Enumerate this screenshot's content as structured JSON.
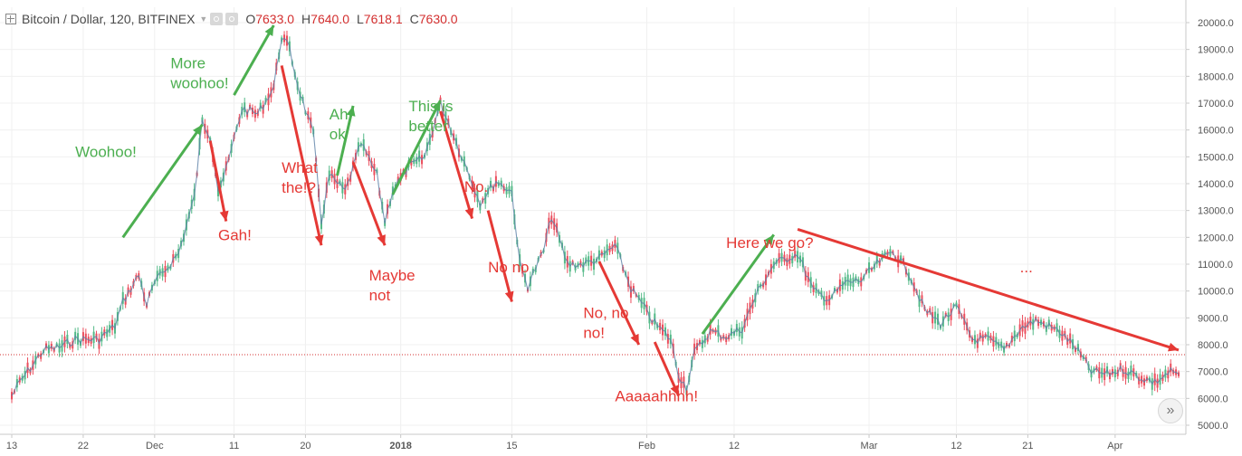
{
  "header": {
    "symbol": "Bitcoin / Dollar, 120, BITFINEX",
    "open_label": "O",
    "open": "7633.0",
    "high_label": "H",
    "high": "7640.0",
    "low_label": "L",
    "low": "7618.1",
    "close_label": "C",
    "close": "7630.0"
  },
  "chart_data": {
    "type": "candlestick",
    "y_axis": {
      "range": [
        4800,
        20500
      ],
      "ticks": [
        "5000.0",
        "6000.0",
        "7000.0",
        "8000.0",
        "9000.0",
        "10000.0",
        "11000.0",
        "12000.0",
        "13000.0",
        "14000.0",
        "15000.0",
        "16000.0",
        "17000.0",
        "18000.0",
        "19000.0",
        "20000.0"
      ],
      "position": "right"
    },
    "x_axis": {
      "range": [
        "2017-11-13",
        "2018-04-09"
      ],
      "ticks": [
        {
          "date": "2017-11-13",
          "label": "13"
        },
        {
          "date": "2017-11-22",
          "label": "22"
        },
        {
          "date": "2017-12-01",
          "label": "Dec"
        },
        {
          "date": "2017-12-11",
          "label": "11"
        },
        {
          "date": "2017-12-20",
          "label": "20"
        },
        {
          "date": "2018-01-01",
          "label": "2018"
        },
        {
          "date": "2018-01-15",
          "label": "15"
        },
        {
          "date": "2018-02-01",
          "label": "Feb"
        },
        {
          "date": "2018-02-12",
          "label": "12"
        },
        {
          "date": "2018-03-01",
          "label": "Mar"
        },
        {
          "date": "2018-03-12",
          "label": "12"
        },
        {
          "date": "2018-03-21",
          "label": "21"
        },
        {
          "date": "2018-04-01",
          "label": "Apr"
        }
      ]
    },
    "price_series": [
      {
        "date": "2017-11-13",
        "value": 6100
      },
      {
        "date": "2017-11-14",
        "value": 6600
      },
      {
        "date": "2017-11-16",
        "value": 7400
      },
      {
        "date": "2017-11-17",
        "value": 7800
      },
      {
        "date": "2017-11-19",
        "value": 7900
      },
      {
        "date": "2017-11-21",
        "value": 8200
      },
      {
        "date": "2017-11-24",
        "value": 8200
      },
      {
        "date": "2017-11-26",
        "value": 8700
      },
      {
        "date": "2017-11-27",
        "value": 9600
      },
      {
        "date": "2017-11-29",
        "value": 10600
      },
      {
        "date": "2017-11-30",
        "value": 9500
      },
      {
        "date": "2017-12-01",
        "value": 10300
      },
      {
        "date": "2017-12-04",
        "value": 11400
      },
      {
        "date": "2017-12-06",
        "value": 13500
      },
      {
        "date": "2017-12-07",
        "value": 16300
      },
      {
        "date": "2017-12-08",
        "value": 15800
      },
      {
        "date": "2017-12-09",
        "value": 13800
      },
      {
        "date": "2017-12-10",
        "value": 14500
      },
      {
        "date": "2017-12-12",
        "value": 16800
      },
      {
        "date": "2017-12-14",
        "value": 16600
      },
      {
        "date": "2017-12-16",
        "value": 17600
      },
      {
        "date": "2017-12-17",
        "value": 19500
      },
      {
        "date": "2017-12-18",
        "value": 19000
      },
      {
        "date": "2017-12-19",
        "value": 17700
      },
      {
        "date": "2017-12-21",
        "value": 15800
      },
      {
        "date": "2017-12-22",
        "value": 12600
      },
      {
        "date": "2017-12-23",
        "value": 14300
      },
      {
        "date": "2017-12-25",
        "value": 13700
      },
      {
        "date": "2017-12-27",
        "value": 15500
      },
      {
        "date": "2017-12-29",
        "value": 14300
      },
      {
        "date": "2017-12-30",
        "value": 12600
      },
      {
        "date": "2017-12-31",
        "value": 13800
      },
      {
        "date": "2018-01-02",
        "value": 14600
      },
      {
        "date": "2018-01-04",
        "value": 15000
      },
      {
        "date": "2018-01-06",
        "value": 17000
      },
      {
        "date": "2018-01-07",
        "value": 16300
      },
      {
        "date": "2018-01-09",
        "value": 14800
      },
      {
        "date": "2018-01-11",
        "value": 13300
      },
      {
        "date": "2018-01-13",
        "value": 14100
      },
      {
        "date": "2018-01-15",
        "value": 13700
      },
      {
        "date": "2018-01-16",
        "value": 11000
      },
      {
        "date": "2018-01-17",
        "value": 10200
      },
      {
        "date": "2018-01-19",
        "value": 11500
      },
      {
        "date": "2018-01-20",
        "value": 12800
      },
      {
        "date": "2018-01-22",
        "value": 11000
      },
      {
        "date": "2018-01-24",
        "value": 11000
      },
      {
        "date": "2018-01-26",
        "value": 11200
      },
      {
        "date": "2018-01-28",
        "value": 11700
      },
      {
        "date": "2018-01-30",
        "value": 10100
      },
      {
        "date": "2018-02-02",
        "value": 8800
      },
      {
        "date": "2018-02-04",
        "value": 8200
      },
      {
        "date": "2018-02-05",
        "value": 6900
      },
      {
        "date": "2018-02-06",
        "value": 6400
      },
      {
        "date": "2018-02-07",
        "value": 7700
      },
      {
        "date": "2018-02-09",
        "value": 8500
      },
      {
        "date": "2018-02-11",
        "value": 8300
      },
      {
        "date": "2018-02-13",
        "value": 8600
      },
      {
        "date": "2018-02-15",
        "value": 10000
      },
      {
        "date": "2018-02-17",
        "value": 11000
      },
      {
        "date": "2018-02-20",
        "value": 11400
      },
      {
        "date": "2018-02-22",
        "value": 10000
      },
      {
        "date": "2018-02-24",
        "value": 9700
      },
      {
        "date": "2018-02-26",
        "value": 10300
      },
      {
        "date": "2018-02-28",
        "value": 10400
      },
      {
        "date": "2018-03-02",
        "value": 11000
      },
      {
        "date": "2018-03-04",
        "value": 11500
      },
      {
        "date": "2018-03-06",
        "value": 10700
      },
      {
        "date": "2018-03-08",
        "value": 9300
      },
      {
        "date": "2018-03-10",
        "value": 8800
      },
      {
        "date": "2018-03-12",
        "value": 9400
      },
      {
        "date": "2018-03-14",
        "value": 8200
      },
      {
        "date": "2018-03-16",
        "value": 8200
      },
      {
        "date": "2018-03-18",
        "value": 7800
      },
      {
        "date": "2018-03-20",
        "value": 8600
      },
      {
        "date": "2018-03-22",
        "value": 8900
      },
      {
        "date": "2018-03-25",
        "value": 8500
      },
      {
        "date": "2018-03-27",
        "value": 7900
      },
      {
        "date": "2018-03-29",
        "value": 7000
      },
      {
        "date": "2018-03-31",
        "value": 6900
      },
      {
        "date": "2018-04-02",
        "value": 7100
      },
      {
        "date": "2018-04-04",
        "value": 6800
      },
      {
        "date": "2018-04-06",
        "value": 6600
      },
      {
        "date": "2018-04-08",
        "value": 7000
      },
      {
        "date": "2018-04-09",
        "value": 6900
      }
    ],
    "current_price_line": 7630,
    "annotations": [
      {
        "text": "Woohoo!",
        "color": "#4caf50",
        "date": "2017-11-21",
        "value": 15000
      },
      {
        "text": "More\nwoohoo!",
        "color": "#4caf50",
        "date": "2017-12-03",
        "value": 18300
      },
      {
        "text": "Gah!",
        "color": "#e53935",
        "date": "2017-12-09",
        "value": 11900
      },
      {
        "text": "What\nthe!?",
        "color": "#e53935",
        "date": "2017-12-17",
        "value": 14400
      },
      {
        "text": "Ah,\nok",
        "color": "#4caf50",
        "date": "2017-12-23",
        "value": 16400
      },
      {
        "text": "This is\nbetter",
        "color": "#4caf50",
        "date": "2018-01-02",
        "value": 16700
      },
      {
        "text": "Maybe\nnot",
        "color": "#e53935",
        "date": "2017-12-28",
        "value": 10400
      },
      {
        "text": "No.",
        "color": "#e53935",
        "date": "2018-01-09",
        "value": 13700
      },
      {
        "text": "No no",
        "color": "#e53935",
        "date": "2018-01-12",
        "value": 10700
      },
      {
        "text": "No, no\nno!",
        "color": "#e53935",
        "date": "2018-01-24",
        "value": 9000
      },
      {
        "text": "Aaaaahhhh!",
        "color": "#e53935",
        "date": "2018-01-28",
        "value": 5900
      },
      {
        "text": "Here we go?",
        "color": "#e53935",
        "date": "2018-02-11",
        "value": 11600
      },
      {
        "text": "...",
        "color": "#e53935",
        "date": "2018-03-20",
        "value": 10700
      }
    ],
    "arrows": [
      {
        "color": "#4caf50",
        "from": {
          "date": "2017-11-27",
          "value": 12000
        },
        "to": {
          "date": "2017-12-07",
          "value": 16200
        }
      },
      {
        "color": "#4caf50",
        "from": {
          "date": "2017-12-11",
          "value": 17300
        },
        "to": {
          "date": "2017-12-16",
          "value": 19900
        }
      },
      {
        "color": "#e53935",
        "from": {
          "date": "2017-12-08",
          "value": 15600
        },
        "to": {
          "date": "2017-12-10",
          "value": 12600
        }
      },
      {
        "color": "#e53935",
        "from": {
          "date": "2017-12-17",
          "value": 18400
        },
        "to": {
          "date": "2017-12-22",
          "value": 11700
        }
      },
      {
        "color": "#4caf50",
        "from": {
          "date": "2017-12-24",
          "value": 14300
        },
        "to": {
          "date": "2017-12-26",
          "value": 16900
        }
      },
      {
        "color": "#e53935",
        "from": {
          "date": "2017-12-26",
          "value": 14800
        },
        "to": {
          "date": "2017-12-30",
          "value": 11700
        }
      },
      {
        "color": "#4caf50",
        "from": {
          "date": "2017-12-31",
          "value": 13600
        },
        "to": {
          "date": "2018-01-06",
          "value": 17100
        }
      },
      {
        "color": "#e53935",
        "from": {
          "date": "2018-01-06",
          "value": 16700
        },
        "to": {
          "date": "2018-01-10",
          "value": 12700
        }
      },
      {
        "color": "#e53935",
        "from": {
          "date": "2018-01-12",
          "value": 13000
        },
        "to": {
          "date": "2018-01-15",
          "value": 9600
        }
      },
      {
        "color": "#e53935",
        "from": {
          "date": "2018-01-26",
          "value": 11100
        },
        "to": {
          "date": "2018-01-31",
          "value": 8000
        }
      },
      {
        "color": "#e53935",
        "from": {
          "date": "2018-02-02",
          "value": 8100
        },
        "to": {
          "date": "2018-02-05",
          "value": 6100
        }
      },
      {
        "color": "#4caf50",
        "from": {
          "date": "2018-02-08",
          "value": 8400
        },
        "to": {
          "date": "2018-02-17",
          "value": 12100
        }
      },
      {
        "color": "#e53935",
        "from": {
          "date": "2018-02-20",
          "value": 12300
        },
        "to": {
          "date": "2018-04-09",
          "value": 7800
        }
      }
    ]
  }
}
